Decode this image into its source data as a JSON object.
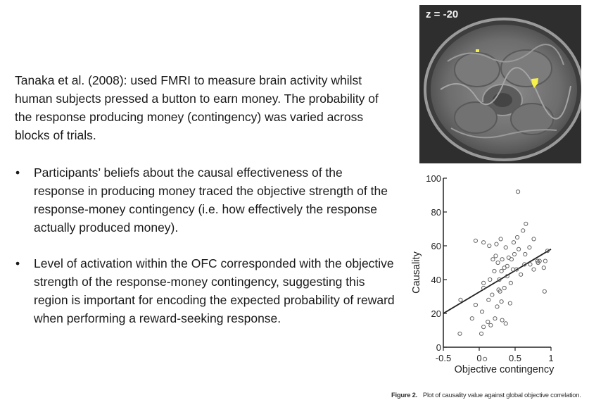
{
  "intro": "Tanaka et al. (2008): used FMRI to measure brain activity whilst human subjects pressed a button to earn money. The probability of the response producing money (contingency) was varied across blocks of trials.",
  "bullets": [
    {
      "marker": "•",
      "text": "Participants’ beliefs about the causal effectiveness of the response in producing money traced the objective strength of the response-money contingency (i.e. how effectively the response actually produced money)."
    },
    {
      "marker": "•",
      "text": "Level of activation within the OFC corresponded with the objective strength of the response-money contingency, suggesting this region is important for encoding the expected probability of reward when performing a reward-seeking response."
    }
  ],
  "mri": {
    "label": "z = -20",
    "highlight_color": "#f5f04a"
  },
  "chart_data": {
    "type": "scatter",
    "xlabel": "Objective contingency",
    "ylabel": "Causality",
    "xlim": [
      -0.5,
      1
    ],
    "ylim": [
      0,
      100
    ],
    "xticks": [
      "-0.5",
      "0",
      "0.5",
      "1"
    ],
    "yticks": [
      "0",
      "20",
      "40",
      "60",
      "80",
      "100"
    ],
    "grid": false,
    "points": [
      [
        -0.27,
        8
      ],
      [
        -0.26,
        28
      ],
      [
        -0.1,
        17
      ],
      [
        -0.05,
        25
      ],
      [
        0.03,
        8
      ],
      [
        0.04,
        21
      ],
      [
        0.08,
        -7
      ],
      [
        0.06,
        12
      ],
      [
        0.12,
        15
      ],
      [
        0.16,
        13
      ],
      [
        0.32,
        16
      ],
      [
        0.37,
        14
      ],
      [
        0.22,
        17
      ],
      [
        0.06,
        35
      ],
      [
        0.13,
        28
      ],
      [
        0.18,
        31
      ],
      [
        0.25,
        24
      ],
      [
        0.27,
        34
      ],
      [
        0.31,
        27
      ],
      [
        0.29,
        33
      ],
      [
        0.35,
        35
      ],
      [
        0.43,
        26
      ],
      [
        0.06,
        38
      ],
      [
        0.15,
        40
      ],
      [
        0.21,
        45
      ],
      [
        0.28,
        40
      ],
      [
        0.31,
        45
      ],
      [
        0.35,
        47
      ],
      [
        0.39,
        42
      ],
      [
        0.44,
        38
      ],
      [
        0.47,
        46
      ],
      [
        0.52,
        46
      ],
      [
        0.58,
        43
      ],
      [
        0.63,
        49
      ],
      [
        0.71,
        49
      ],
      [
        0.76,
        46
      ],
      [
        0.82,
        50
      ],
      [
        0.84,
        51
      ],
      [
        0.9,
        47
      ],
      [
        0.92,
        51
      ],
      [
        0.91,
        33
      ],
      [
        0.19,
        52
      ],
      [
        0.26,
        50
      ],
      [
        0.32,
        52
      ],
      [
        0.41,
        53
      ],
      [
        0.45,
        52
      ],
      [
        0.49,
        55
      ],
      [
        0.55,
        58
      ],
      [
        0.64,
        55
      ],
      [
        0.7,
        59
      ],
      [
        0.76,
        64
      ],
      [
        0.81,
        51
      ],
      [
        0.95,
        57
      ],
      [
        -0.05,
        63
      ],
      [
        0.06,
        62
      ],
      [
        0.14,
        60
      ],
      [
        0.24,
        61
      ],
      [
        0.3,
        64
      ],
      [
        0.37,
        59
      ],
      [
        0.48,
        62
      ],
      [
        0.53,
        65
      ],
      [
        0.61,
        69
      ],
      [
        0.65,
        73
      ],
      [
        0.54,
        92
      ],
      [
        0.39,
        48
      ],
      [
        0.23,
        54
      ]
    ],
    "fit": {
      "x": [
        -0.5,
        1
      ],
      "y": [
        20,
        58
      ]
    }
  },
  "caption": {
    "figure": "Figure 2.",
    "text": "Plot of causality value against global objective correlation."
  }
}
